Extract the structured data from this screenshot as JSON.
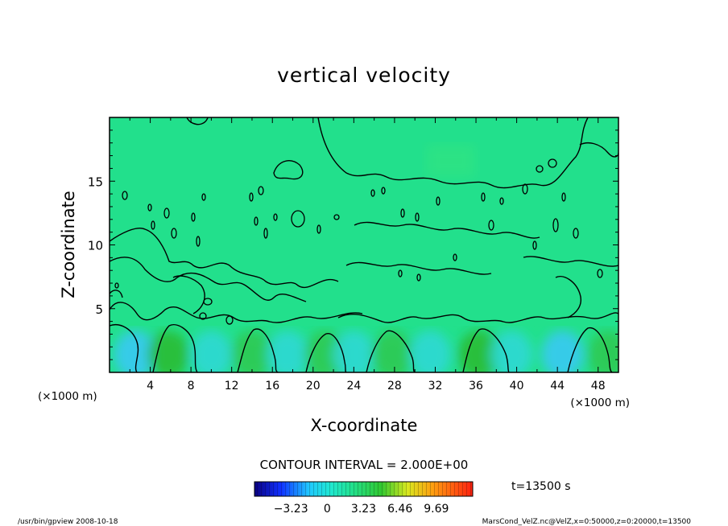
{
  "chart_data": {
    "type": "heatmap",
    "title": "vertical velocity",
    "xlabel": "X-coordinate",
    "ylabel": "Z-coordinate",
    "x_unit_left": "(×1000 m)",
    "x_unit_right": "(×1000 m)",
    "xlim": [
      0,
      50
    ],
    "ylim": [
      0,
      20
    ],
    "x_ticks": [
      4,
      8,
      12,
      16,
      20,
      24,
      28,
      32,
      36,
      40,
      44,
      48
    ],
    "y_ticks": [
      5,
      10,
      15
    ],
    "contour_interval_label": "CONTOUR INTERVAL = 2.000E+00",
    "time_label": "t=13500 s",
    "colorbar_ticks": [
      "−3.23",
      "0",
      "3.23",
      "6.46",
      "9.69"
    ],
    "colorbar_range": [
      -6.46,
      12.92
    ],
    "grid": false,
    "background_color": "#22e08c",
    "near_surface_cells": [
      {
        "x": 2.5,
        "value": -1.6
      },
      {
        "x": 5.8,
        "value": 1.6
      },
      {
        "x": 10.0,
        "value": -1.4
      },
      {
        "x": 14.0,
        "value": 1.0
      },
      {
        "x": 17.5,
        "value": -1.2
      },
      {
        "x": 21.2,
        "value": 1.4
      },
      {
        "x": 24.0,
        "value": -1.5
      },
      {
        "x": 27.8,
        "value": 1.5
      },
      {
        "x": 31.5,
        "value": -1.3
      },
      {
        "x": 36.3,
        "value": 2.0
      },
      {
        "x": 39.5,
        "value": -1.0
      },
      {
        "x": 44.5,
        "value": -1.8
      },
      {
        "x": 49.0,
        "value": 1.0
      }
    ]
  },
  "footer": {
    "left": "/usr/bin/gpview   2008-10-18",
    "right": "MarsCond_VelZ.nc@VelZ,x=0:50000,z=0:20000,t=13500"
  }
}
